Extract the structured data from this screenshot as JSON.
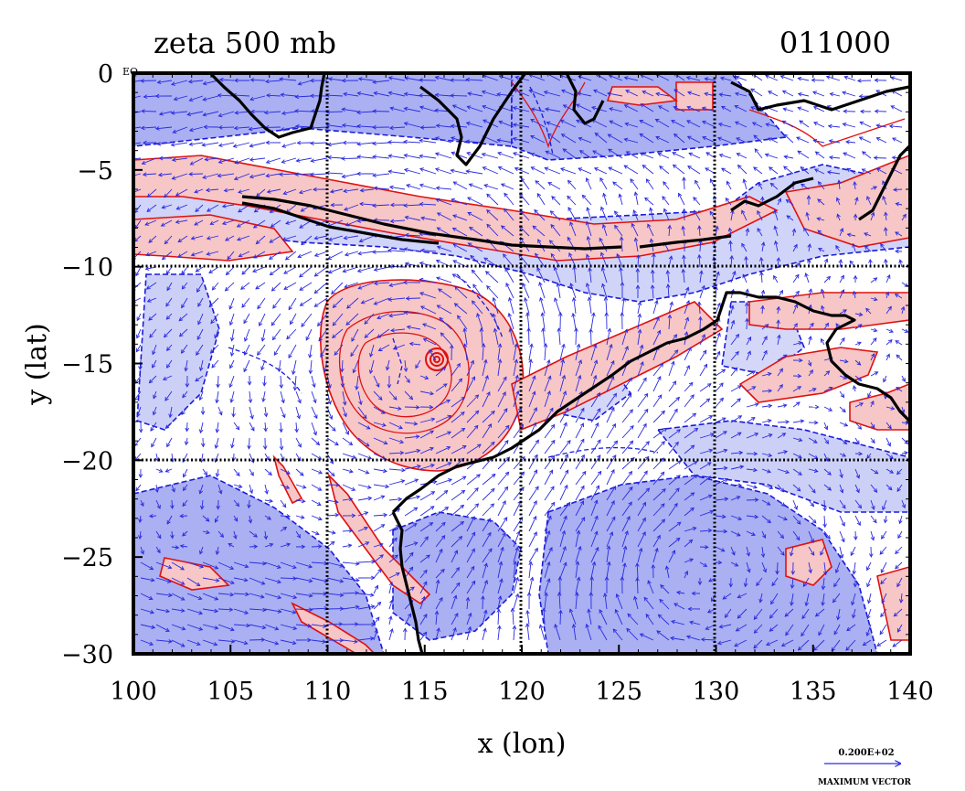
{
  "title_left": "zeta 500 mb",
  "title_right": "011000",
  "origin_label": "EQ",
  "x_axis": {
    "label": "x (lon)",
    "ticks": [
      100,
      105,
      110,
      115,
      120,
      125,
      130,
      135,
      140
    ],
    "range": [
      100,
      140
    ]
  },
  "y_axis": {
    "label": "y (lat)",
    "ticks": [
      0,
      -5,
      -10,
      -15,
      -20,
      -25,
      -30
    ],
    "range": [
      -30,
      0
    ]
  },
  "gridlines": {
    "lon": [
      110,
      120,
      130
    ],
    "lat": [
      -10,
      -20
    ]
  },
  "vector_legend": {
    "value": "0.200E+02",
    "caption": "MAXIMUM VECTOR"
  },
  "colors": {
    "negative_fill": "#aab0f2",
    "negative_contour": "#1a1adc",
    "positive_fill": "#f7c6c6",
    "positive_contour": "#e01010",
    "coastline": "#000000",
    "vector": "#2a2ae0"
  },
  "features": {
    "cyclone_center": {
      "lon": 115.5,
      "lat": -15
    }
  }
}
